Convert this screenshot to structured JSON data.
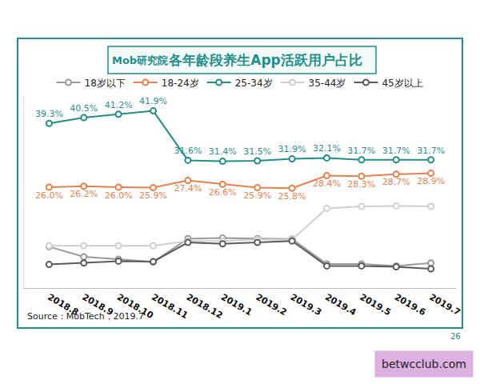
{
  "chart_data": {
    "type": "line",
    "title": "各年龄段养生App活跃用户占比",
    "source": "Source：MobTech，2019.7",
    "annotations": [
      {
        "text": "Mob研究院"
      },
      {
        "text": "26"
      },
      {
        "text": "betwcclub.com"
      }
    ],
    "categories": [
      "2018.8",
      "2018.9",
      "2018.10",
      "2018.11",
      "2018.12",
      "2019.1",
      "2019.2",
      "2019.3",
      "2019.4",
      "2019.5",
      "2019.6",
      "2019.7"
    ],
    "ylim": [
      5,
      45
    ],
    "yticks": [],
    "tick_labels": "x",
    "grid": false,
    "legend": "top",
    "series": [
      {
        "name": "18岁以下",
        "color": "#9a9a9a",
        "marker": "circle",
        "line_style": "solid",
        "data_labels": false,
        "values": [
          13.6,
          11.5,
          11.0,
          10.4,
          15.3,
          15.4,
          15.3,
          15.2,
          10.0,
          10.0,
          9.6,
          10.2
        ]
      },
      {
        "name": "18-24岁",
        "color": "#e8804a",
        "marker": "circle",
        "line_style": "solid",
        "data_labels": true,
        "values": [
          26.0,
          26.2,
          26.0,
          25.9,
          27.4,
          26.6,
          25.9,
          25.8,
          28.4,
          28.3,
          28.7,
          28.9
        ],
        "value_labels": [
          "26.0%",
          "26.2%",
          "26.0%",
          "25.9%",
          "27.4%",
          "26.6%",
          "25.9%",
          "25.8%",
          "28.4%",
          "28.3%",
          "28.7%",
          "28.9%"
        ]
      },
      {
        "name": "25-34岁",
        "color": "#1f8f8a",
        "marker": "circle",
        "line_style": "solid",
        "data_labels": true,
        "values": [
          39.3,
          40.5,
          41.2,
          41.9,
          31.6,
          31.4,
          31.5,
          31.9,
          32.1,
          31.7,
          31.7,
          31.7
        ],
        "value_labels": [
          "39.3%",
          "40.5%",
          "41.2%",
          "41.9%",
          "31.6%",
          "31.4%",
          "31.5%",
          "31.9%",
          "32.1%",
          "31.7%",
          "31.7%",
          "31.7%"
        ]
      },
      {
        "name": "35-44岁",
        "color": "#cfcfcf",
        "marker": "circle",
        "line_style": "solid",
        "data_labels": false,
        "values": [
          13.8,
          13.8,
          13.8,
          13.8,
          14.8,
          14.8,
          15.1,
          15.1,
          21.6,
          22.0,
          22.1,
          22.0
        ]
      },
      {
        "name": "45岁以上",
        "color": "#5a5a5a",
        "marker": "circle",
        "line_style": "solid",
        "data_labels": false,
        "values": [
          9.9,
          10.2,
          10.6,
          10.5,
          14.5,
          14.2,
          14.5,
          14.8,
          9.6,
          9.6,
          9.4,
          9.0
        ]
      }
    ]
  }
}
